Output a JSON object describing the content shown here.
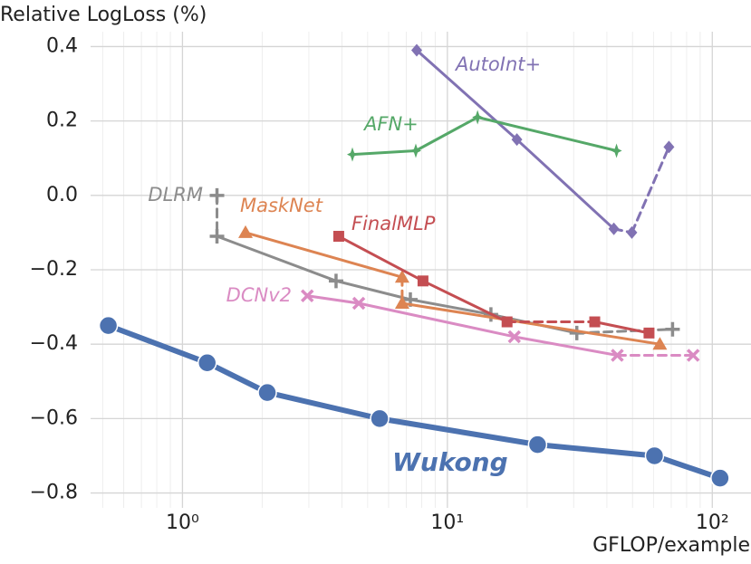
{
  "chart_data": {
    "type": "line",
    "y_label": "Relative LogLoss (%)",
    "x_label": "GFLOP/example",
    "log_x": true,
    "grid": true,
    "xlim": [
      0.45,
      140
    ],
    "ylim": [
      -0.84,
      0.44
    ],
    "xticks": [
      {
        "value": 1,
        "label": "10⁰"
      },
      {
        "value": 10,
        "label": "10¹"
      },
      {
        "value": 100,
        "label": "10²"
      }
    ],
    "xminorticks": [
      0.5,
      0.6,
      0.7,
      0.8,
      0.9,
      2,
      3,
      4,
      5,
      6,
      7,
      8,
      9,
      20,
      30,
      40,
      50,
      60,
      70,
      80,
      90
    ],
    "yticks": [
      0.4,
      0.2,
      {
        "value": 0,
        "label": "0.0"
      },
      {
        "value": -0.2,
        "label": "−0.2"
      },
      {
        "value": -0.4,
        "label": "−0.4"
      },
      {
        "value": -0.6,
        "label": "−0.6"
      },
      {
        "value": -0.8,
        "label": "−0.8"
      }
    ],
    "series": [
      {
        "name": "Wukong",
        "color": "#4c72b0",
        "marker": "circle",
        "x": [
          0.525,
          1.24,
          2.09,
          5.55,
          21.9,
          60.5,
          107
        ],
        "values": [
          -0.35,
          -0.45,
          -0.53,
          -0.6,
          -0.67,
          -0.7,
          -0.76
        ],
        "dashed_segments": []
      },
      {
        "name": "AutoInt+",
        "color": "#8172b3",
        "marker": "diamond",
        "x": [
          7.66,
          18.3,
          42.5,
          49.7,
          68.6
        ],
        "values": [
          0.39,
          0.15,
          -0.09,
          -0.1,
          0.13
        ],
        "dashed_segments": [
          2,
          3
        ]
      },
      {
        "name": "AFN+",
        "color": "#55a868",
        "marker": "star",
        "x": [
          4.38,
          7.6,
          13.0,
          43.5
        ],
        "values": [
          0.11,
          0.12,
          0.21,
          0.12
        ],
        "dashed_segments": []
      },
      {
        "name": "DLRM",
        "color": "#8c8c8c",
        "marker": "plus",
        "x": [
          1.35,
          1.35,
          3.8,
          7.25,
          14.6,
          30.8,
          70.8
        ],
        "values": [
          0.0,
          -0.11,
          -0.23,
          -0.28,
          -0.32,
          -0.37,
          -0.36
        ],
        "dashed_segments": [
          0,
          5
        ]
      },
      {
        "name": "MaskNet",
        "color": "#dd8452",
        "marker": "triangle",
        "x": [
          1.73,
          6.75,
          6.75,
          63.4
        ],
        "values": [
          -0.1,
          -0.22,
          -0.29,
          -0.4
        ],
        "dashed_segments": [
          1
        ]
      },
      {
        "name": "FinalMLP",
        "color": "#c44e52",
        "marker": "square",
        "x": [
          3.89,
          8.09,
          16.8,
          36.0,
          57.7
        ],
        "values": [
          -0.11,
          -0.23,
          -0.34,
          -0.34,
          -0.37
        ],
        "dashed_segments": [
          2
        ]
      },
      {
        "name": "DCNv2",
        "color": "#da8bc3",
        "marker": "x",
        "x": [
          2.96,
          4.63,
          17.9,
          43.8,
          84.7
        ],
        "values": [
          -0.27,
          -0.29,
          -0.38,
          -0.43,
          -0.43
        ],
        "dashed_segments": [
          3
        ]
      }
    ]
  }
}
